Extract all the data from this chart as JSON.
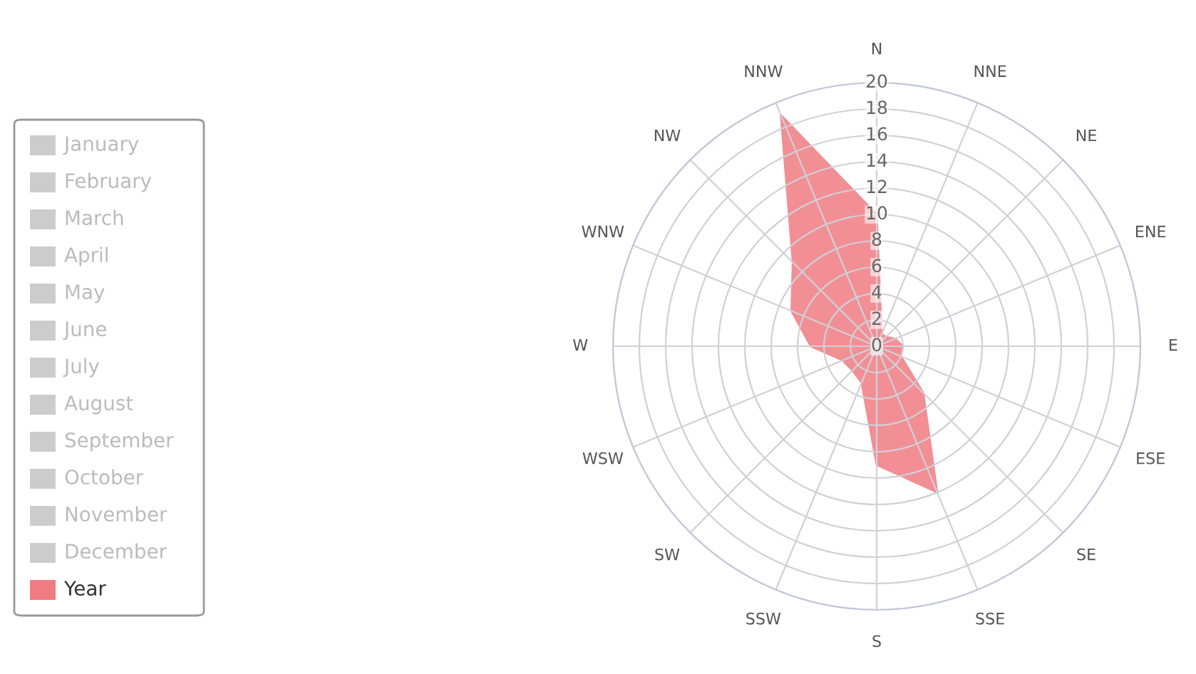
{
  "chart_data": {
    "type": "radar",
    "categories": [
      "N",
      "NNE",
      "NE",
      "ENE",
      "E",
      "ESE",
      "SE",
      "SSE",
      "S",
      "SSW",
      "SW",
      "WSW",
      "W",
      "WNW",
      "NW",
      "NNW"
    ],
    "series": [
      {
        "name": "Year",
        "color": "#f07c82",
        "values": [
          10,
          1,
          1,
          1.5,
          2,
          2,
          5,
          12,
          9,
          3,
          2.6,
          2.8,
          5,
          7,
          9,
          19
        ]
      }
    ],
    "annotations": [
      "January",
      "February",
      "March",
      "April",
      "May",
      "June",
      "July",
      "August",
      "September",
      "October",
      "November",
      "December"
    ],
    "ylim": [
      0,
      20
    ],
    "yticks": [
      0,
      2,
      4,
      6,
      8,
      10,
      12,
      14,
      16,
      18,
      20
    ],
    "grid": true,
    "legend": "left"
  }
}
